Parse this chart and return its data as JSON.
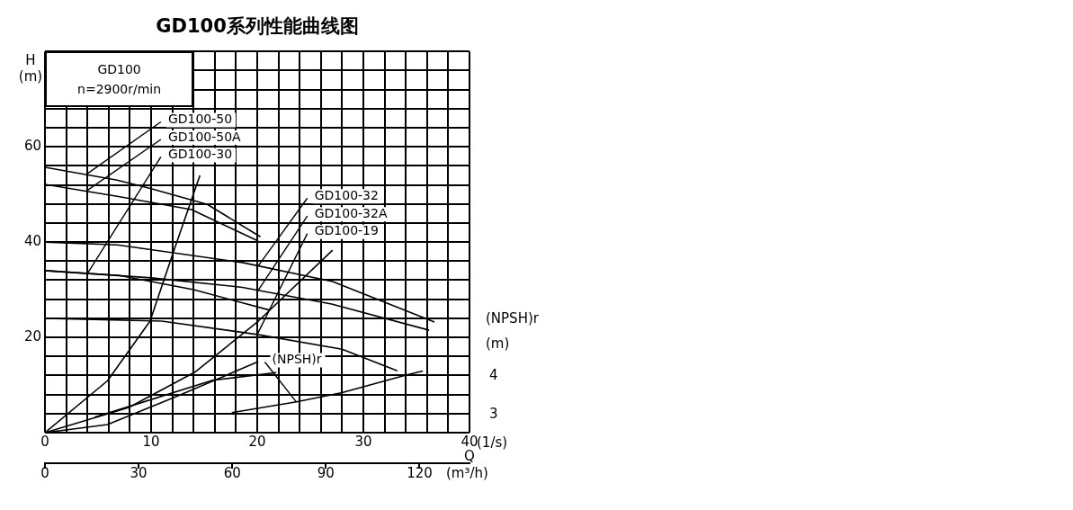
{
  "chart_data": {
    "type": "line",
    "title": "GD100系列性能曲线图",
    "xlabel": "(1/s)",
    "x2label": "Q (m³/h)",
    "ylabel": "H (m)",
    "y2label": "(NPSH)r (m)",
    "xlim": [
      0,
      40
    ],
    "xticks": [
      0,
      {
        "value": 2,
        "label": null
      },
      {
        "value": 4,
        "label": null
      },
      {
        "value": 6,
        "label": null
      },
      {
        "value": 8,
        "label": null
      },
      10,
      {
        "value": 12,
        "label": null
      },
      {
        "value": 14,
        "label": null
      },
      {
        "value": 16,
        "label": null
      },
      {
        "value": 18,
        "label": null
      },
      20,
      {
        "value": 22,
        "label": null
      },
      {
        "value": 24,
        "label": null
      },
      {
        "value": 26,
        "label": null
      },
      {
        "value": 28,
        "label": null
      },
      30,
      {
        "value": 32,
        "label": null
      },
      {
        "value": 34,
        "label": null
      },
      {
        "value": 36,
        "label": null
      },
      {
        "value": 38,
        "label": null
      },
      40
    ],
    "x2lim": [
      0,
      136
    ],
    "x2ticks": [
      0,
      30,
      60,
      90,
      120
    ],
    "ylim": [
      0,
      80
    ],
    "yticks": [
      {
        "value": 0,
        "label": null
      },
      {
        "value": 4,
        "label": null
      },
      {
        "value": 8,
        "label": null
      },
      {
        "value": 12,
        "label": null
      },
      {
        "value": 16,
        "label": null
      },
      20,
      {
        "value": 24,
        "label": null
      },
      {
        "value": 28,
        "label": null
      },
      {
        "value": 32,
        "label": null
      },
      {
        "value": 36,
        "label": null
      },
      40,
      {
        "value": 44,
        "label": null
      },
      {
        "value": 48,
        "label": null
      },
      {
        "value": 52,
        "label": null
      },
      {
        "value": 56,
        "label": null
      },
      60,
      {
        "value": 64,
        "label": null
      },
      {
        "value": 68,
        "label": null
      },
      {
        "value": 72,
        "label": null
      },
      {
        "value": 76,
        "label": null
      },
      {
        "value": 80,
        "label": null
      }
    ],
    "y2lim": [
      2.5,
      12.4
    ],
    "y2ticks": [
      3,
      4
    ],
    "grid": true,
    "line_style": "solid",
    "series": [
      {
        "color": "#000000",
        "x": [
          0,
          6.8,
          10,
          15.3,
          20.3
        ],
        "values": [
          55.7,
          53,
          51.2,
          47.9,
          41.1
        ]
      },
      {
        "color": "#000000",
        "x": [
          0,
          6.8,
          13.8,
          20.1
        ],
        "values": [
          52.1,
          49.6,
          46.8,
          40.2
        ]
      },
      {
        "color": "#000000",
        "x": [
          0,
          6.8,
          18.6,
          27.1,
          36.7
        ],
        "values": [
          40,
          39.4,
          35.7,
          31.7,
          23.2
        ]
      },
      {
        "color": "#000000",
        "x": [
          0,
          10,
          18.6,
          27,
          36.2
        ],
        "values": [
          34,
          32.5,
          30.5,
          27,
          21.5
        ]
      },
      {
        "color": "#000000",
        "x": [
          0,
          7,
          14,
          21.2
        ],
        "values": [
          34,
          33,
          30,
          25.7
        ]
      },
      {
        "color": "#000000",
        "x": [
          0,
          11,
          20,
          28,
          33.2
        ],
        "values": [
          24,
          23.4,
          20.6,
          17.5,
          13
        ]
      },
      {
        "color": "#000000",
        "x": [
          0,
          5.9,
          9.9,
          12.1,
          14.6
        ],
        "values": [
          0,
          10.9,
          23.4,
          37.9,
          54
        ]
      },
      {
        "color": "#000000",
        "x": [
          0,
          7.9,
          14.2,
          20.1,
          27.1
        ],
        "values": [
          0,
          5.3,
          12.8,
          23.4,
          38.3
        ]
      },
      {
        "color": "#000000",
        "x": [
          0,
          5.9,
          12.5,
          20.1
        ],
        "values": [
          0,
          1.7,
          7.7,
          14.9
        ]
      },
      {
        "color": "#000000",
        "axis": "y2",
        "x": [
          4.7,
          15.8,
          21.8
        ],
        "values": [
          2.9,
          3.86,
          4.06
        ]
      },
      {
        "color": "#000000",
        "axis": "y2",
        "x": [
          17.6,
          23.7,
          28,
          34.1,
          35.6
        ],
        "values": [
          3.02,
          3.3,
          3.54,
          4,
          4.1
        ]
      }
    ],
    "annotations": [
      "GD100",
      "n=2900r/min",
      {
        "text": "GD100-50",
        "x": 3.9,
        "y": 54.2
      },
      {
        "text": "GD100-50A",
        "x": 3.9,
        "y": 50.7
      },
      {
        "text": "GD100-30",
        "x": 4,
        "y": 33.4
      },
      {
        "text": "GD100-32",
        "x": 20.1,
        "y": 35
      },
      {
        "text": "GD100-32A",
        "x": 20.1,
        "y": 29.9
      },
      {
        "text": "GD100-19",
        "x": 20,
        "y": 20.6
      },
      {
        "text": "(NPSH)r",
        "x": 23.7,
        "y": 6.4
      }
    ]
  }
}
